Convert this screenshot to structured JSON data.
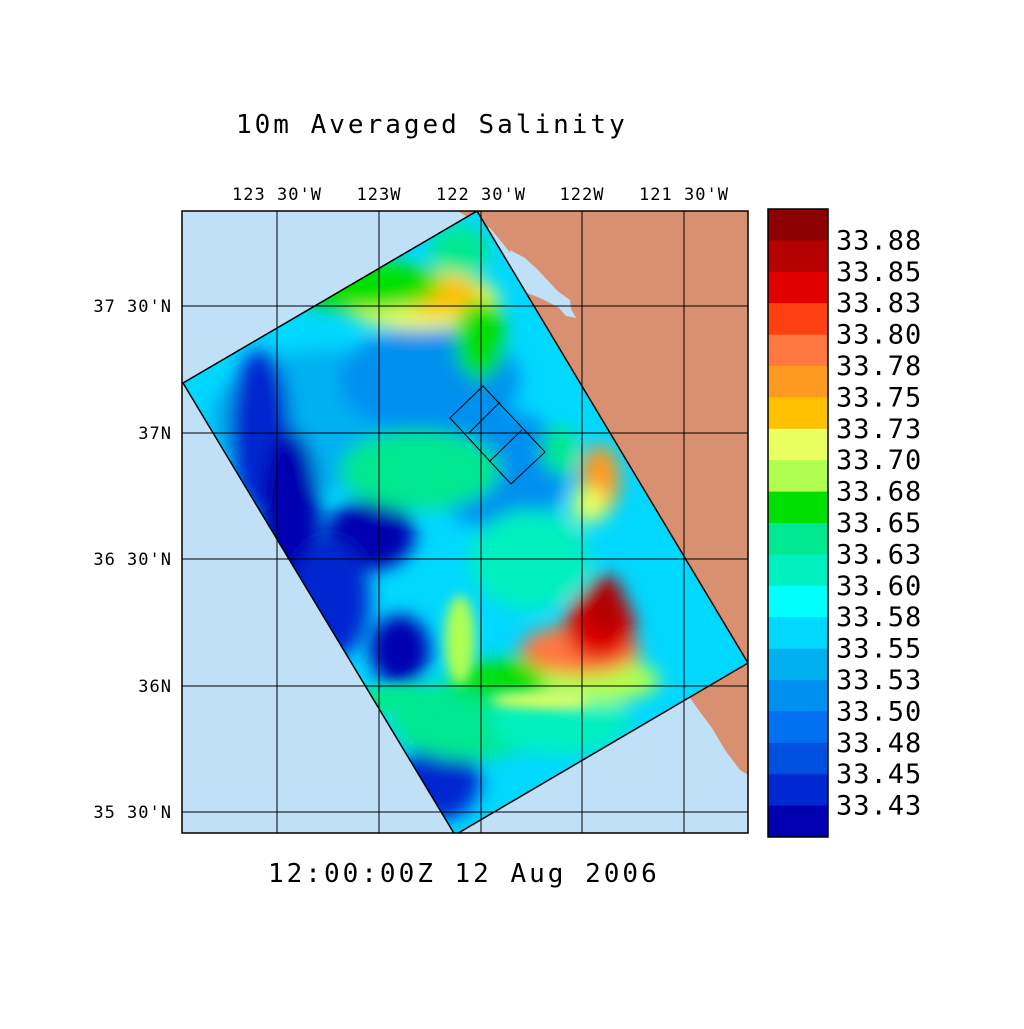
{
  "title": "10m Averaged Salinity",
  "time_stamp": "12:00:00Z  12 Aug 2006",
  "axes": {
    "lon_ticks": [
      "123 30'W",
      "123W",
      "122 30'W",
      "122W",
      "121 30'W"
    ],
    "lat_ticks": [
      "37 30'N",
      "37N",
      "36 30'N",
      "36N",
      "35 30'N"
    ]
  },
  "colorbar": {
    "labels": [
      "33.88",
      "33.85",
      "33.83",
      "33.80",
      "33.78",
      "33.75",
      "33.73",
      "33.70",
      "33.68",
      "33.65",
      "33.63",
      "33.60",
      "33.58",
      "33.55",
      "33.53",
      "33.50",
      "33.48",
      "33.45",
      "33.43"
    ],
    "colors": [
      "#8b0000",
      "#b40000",
      "#e00000",
      "#ff4010",
      "#ff7840",
      "#ff9a20",
      "#ffc000",
      "#e8ff60",
      "#b0ff50",
      "#00e000",
      "#00e890",
      "#00f0c0",
      "#00ffff",
      "#00d8ff",
      "#00b0f0",
      "#0090f0",
      "#0070f0",
      "#0050e0",
      "#0028d0",
      "#0000b0"
    ]
  },
  "chart_data": {
    "type": "heatmap",
    "title": "10m Averaged Salinity",
    "variable": "Salinity",
    "depth": "10m",
    "time": "12:00:00Z 12 Aug 2006",
    "lon_range": [
      "124W",
      "121 12'W"
    ],
    "lat_range": [
      "35 25'N",
      "37 47'N"
    ],
    "color_scale_min": 33.43,
    "color_scale_max": 33.88,
    "color_levels": [
      33.43,
      33.45,
      33.48,
      33.5,
      33.53,
      33.55,
      33.58,
      33.6,
      33.63,
      33.65,
      33.68,
      33.7,
      33.73,
      33.75,
      33.78,
      33.8,
      33.83,
      33.85,
      33.88
    ],
    "land_color": "#d89070",
    "ocean_color": "#c0e0f8",
    "grid": true
  }
}
